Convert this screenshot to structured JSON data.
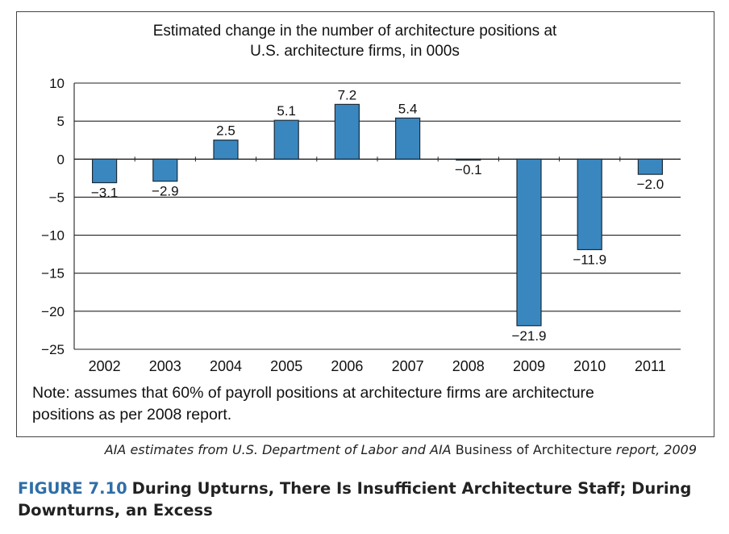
{
  "chart_data": {
    "type": "bar",
    "title": "Estimated change in the number of architecture positions at",
    "title_line2": "U.S. architecture firms, in 000s",
    "categories": [
      "2002",
      "2003",
      "2004",
      "2005",
      "2006",
      "2007",
      "2008",
      "2009",
      "2010",
      "2011"
    ],
    "values": [
      -3.1,
      -2.9,
      2.5,
      5.1,
      7.2,
      5.4,
      -0.1,
      -21.9,
      -11.9,
      -2.0
    ],
    "value_labels": [
      "−3.1",
      "−2.9",
      "2.5",
      "5.1",
      "7.2",
      "5.4",
      "−0.1",
      "−21.9",
      "−11.9",
      "−2.0"
    ],
    "y_ticks": [
      10,
      5,
      0,
      -5,
      -10,
      -15,
      -20,
      -25
    ],
    "y_tick_labels": [
      "10",
      "5",
      "0",
      "−5",
      "−10",
      "−15",
      "−20",
      "−25"
    ],
    "ylim": [
      -25,
      10
    ],
    "grid": true,
    "bar_color": "#3a87c0",
    "xlabel": "",
    "ylabel": ""
  },
  "note": {
    "line1": "Note: assumes that 60% of payroll positions at architecture firms are architecture",
    "line2": "positions as per 2008 report."
  },
  "source": {
    "part1": "AIA estimates from U.S. Department of Labor and AIA",
    "part2": " Business of Architecture ",
    "part3": "report, 2009"
  },
  "caption": {
    "number": "FIGURE 7.10",
    "text": "During Upturns, There Is Insufficient Architecture Staff; During Downturns, an Excess"
  },
  "colors": {
    "caption_number": "#2e6ea6",
    "bar": "#3a87c0",
    "frame": "#444444"
  }
}
